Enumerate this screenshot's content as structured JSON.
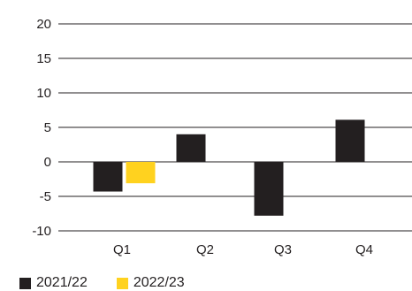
{
  "chart_data": {
    "type": "bar",
    "categories": [
      "Q1",
      "Q2",
      "Q3",
      "Q4"
    ],
    "series": [
      {
        "name": "2021/22",
        "color": "#231f20",
        "values": [
          -4.3,
          4.0,
          -7.8,
          6.1
        ]
      },
      {
        "name": "2022/23",
        "color": "#ffd21f",
        "values": [
          -3.1,
          null,
          null,
          null
        ]
      }
    ],
    "yticks": [
      20,
      15,
      10,
      5,
      0,
      -5,
      -10
    ],
    "ylim": [
      -10,
      20
    ],
    "grid": true,
    "legend": "bottom-left"
  }
}
